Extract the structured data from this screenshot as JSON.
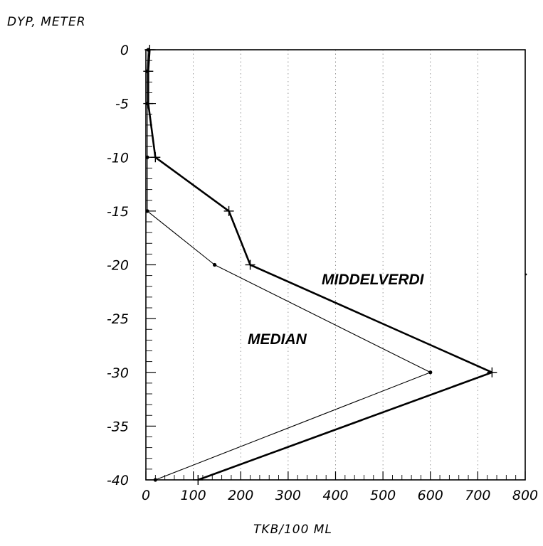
{
  "chart_data": {
    "type": "line",
    "ylabel": "DYP, METER",
    "xlabel": "TKB/100 ML",
    "xlim": [
      0,
      800
    ],
    "ylim": [
      -40,
      0
    ],
    "x_ticks": [
      "0",
      "100",
      "200",
      "300",
      "400",
      "500",
      "600",
      "700",
      "800"
    ],
    "y_ticks": [
      "0",
      "-5",
      "-10",
      "-15",
      "-20",
      "-25",
      "-30",
      "-35",
      "-40"
    ],
    "grid": "vertical-dotted",
    "series": [
      {
        "name": "MIDDELVERDI",
        "marker": "plus",
        "points": [
          {
            "x": 8,
            "y": 0
          },
          {
            "x": 5,
            "y": -2
          },
          {
            "x": 5,
            "y": -5
          },
          {
            "x": 20,
            "y": -10
          },
          {
            "x": 175,
            "y": -15
          },
          {
            "x": 220,
            "y": -20
          },
          {
            "x": 730,
            "y": -30
          },
          {
            "x": 110,
            "y": -40
          }
        ]
      },
      {
        "name": "MEDIAN",
        "marker": "dot",
        "points": [
          {
            "x": 5,
            "y": 0
          },
          {
            "x": 3,
            "y": -2
          },
          {
            "x": 3,
            "y": -5
          },
          {
            "x": 3,
            "y": -10
          },
          {
            "x": 3,
            "y": -15
          },
          {
            "x": 145,
            "y": -20
          },
          {
            "x": 600,
            "y": -30
          },
          {
            "x": 20,
            "y": -40
          }
        ]
      }
    ]
  }
}
